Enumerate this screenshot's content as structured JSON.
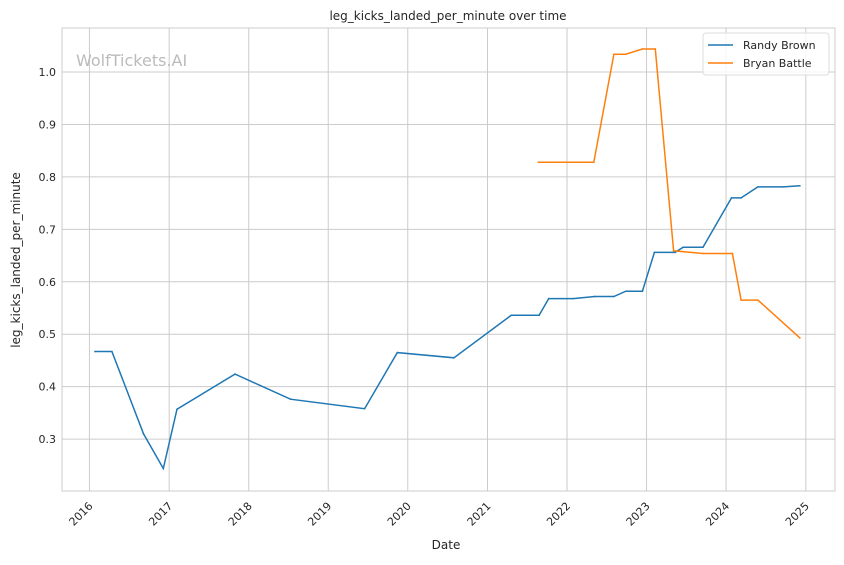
{
  "chart_data": {
    "type": "line",
    "title": "leg_kicks_landed_per_minute over time",
    "xlabel": "Date",
    "ylabel": "leg_kicks_landed_per_minute",
    "watermark": "WolfTickets.AI",
    "xlim": [
      "2015-08-28",
      "2025-05-15"
    ],
    "ylim": [
      0.201,
      1.084
    ],
    "x_ticks": [
      "2016",
      "2017",
      "2018",
      "2019",
      "2020",
      "2021",
      "2022",
      "2023",
      "2024",
      "2025"
    ],
    "y_ticks": [
      "0.3",
      "0.4",
      "0.5",
      "0.6",
      "0.7",
      "0.8",
      "0.9",
      "1.0"
    ],
    "grid": true,
    "legend_position": "top-right",
    "series": [
      {
        "name": "Randy Brown",
        "color": "#1f77b4",
        "x": [
          "2016-01-26",
          "2016-04-13",
          "2016-09-05",
          "2016-12-05",
          "2017-02-06",
          "2017-10-30",
          "2018-07-12",
          "2019-06-17",
          "2019-11-14",
          "2020-07-31",
          "2021-04-20",
          "2021-08-26",
          "2021-10-09",
          "2022-01-30",
          "2022-05-08",
          "2022-08-04",
          "2022-09-28",
          "2022-12-13",
          "2023-02-06",
          "2023-05-12",
          "2023-06-18",
          "2023-09-17",
          "2024-01-26",
          "2024-03-10",
          "2024-05-26",
          "2024-09-20",
          "2024-12-05"
        ],
        "y": [
          0.467,
          0.467,
          0.31,
          0.244,
          0.357,
          0.424,
          0.376,
          0.358,
          0.465,
          0.455,
          0.536,
          0.536,
          0.568,
          0.568,
          0.572,
          0.572,
          0.582,
          0.582,
          0.656,
          0.656,
          0.666,
          0.666,
          0.76,
          0.76,
          0.781,
          0.781,
          0.783
        ]
      },
      {
        "name": "Bryan Battle",
        "color": "#ff7f0e",
        "x": [
          "2021-08-22",
          "2022-05-04",
          "2022-08-04",
          "2022-09-28",
          "2022-12-13",
          "2023-02-10",
          "2023-05-05",
          "2023-09-17",
          "2024-01-30",
          "2024-03-10",
          "2024-05-26",
          "2024-12-05"
        ],
        "y": [
          0.828,
          0.828,
          1.034,
          1.034,
          1.044,
          1.044,
          0.659,
          0.654,
          0.654,
          0.565,
          0.565,
          0.493
        ]
      }
    ]
  }
}
